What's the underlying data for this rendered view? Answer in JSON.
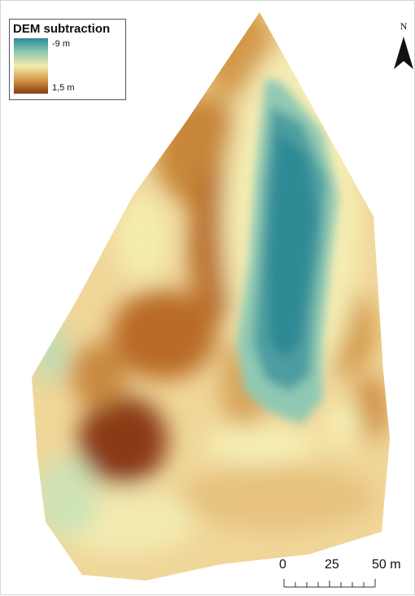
{
  "legend": {
    "title": "DEM subtraction",
    "min_label": "-9 m",
    "max_label": "1,5 m",
    "ramp_colors": [
      "#2d8a95",
      "#8fc9b3",
      "#f4ecad",
      "#d39948",
      "#8a3a14"
    ]
  },
  "north_arrow": {
    "label": "N",
    "icon": "north-arrow-icon"
  },
  "scale_bar": {
    "labels": [
      "0",
      "25",
      "50 m"
    ],
    "divisions": 8
  },
  "colors": {
    "deep_blue": "#2d8a95",
    "pale_yellow": "#f4ecad",
    "dark_brown": "#8a3a14"
  }
}
